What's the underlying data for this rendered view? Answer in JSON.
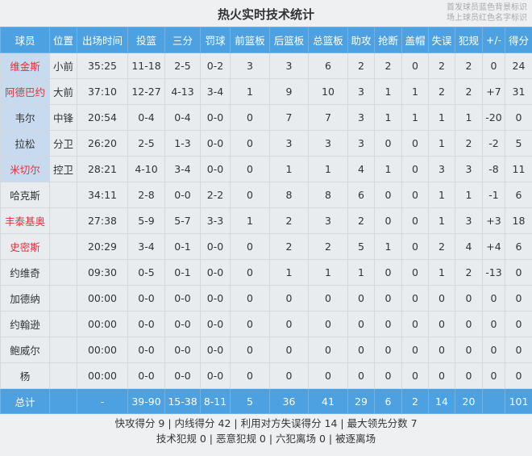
{
  "title": "热火实时技术统计",
  "legend": [
    "首发球员蓝色背景标识",
    "场上球员红色名字标识"
  ],
  "colors": {
    "header": "#4ea1e0",
    "starter_bg": "#c8dbee",
    "on_court_name": "#e0323c"
  },
  "columns": [
    "球员",
    "位置",
    "出场时间",
    "投篮",
    "三分",
    "罚球",
    "前篮板",
    "后篮板",
    "总篮板",
    "助攻",
    "抢断",
    "盖帽",
    "失误",
    "犯规",
    "+/-",
    "得分"
  ],
  "players": [
    {
      "name": "维金斯",
      "starter": true,
      "on_court": true,
      "stats": [
        "小前",
        "35:25",
        "11-18",
        "2-5",
        "0-2",
        "3",
        "3",
        "6",
        "2",
        "2",
        "0",
        "2",
        "2",
        "0",
        "24"
      ]
    },
    {
      "name": "阿德巴约",
      "starter": true,
      "on_court": true,
      "stats": [
        "大前",
        "37:10",
        "12-27",
        "4-13",
        "3-4",
        "1",
        "9",
        "10",
        "3",
        "1",
        "1",
        "2",
        "2",
        "+7",
        "31"
      ]
    },
    {
      "name": "韦尔",
      "starter": true,
      "on_court": false,
      "stats": [
        "中锋",
        "20:54",
        "0-4",
        "0-4",
        "0-0",
        "0",
        "7",
        "7",
        "3",
        "1",
        "1",
        "1",
        "1",
        "-20",
        "0"
      ]
    },
    {
      "name": "拉松",
      "starter": true,
      "on_court": false,
      "stats": [
        "分卫",
        "26:20",
        "2-5",
        "1-3",
        "0-0",
        "0",
        "3",
        "3",
        "3",
        "0",
        "0",
        "1",
        "2",
        "-2",
        "5"
      ]
    },
    {
      "name": "米切尔",
      "starter": true,
      "on_court": true,
      "stats": [
        "控卫",
        "28:21",
        "4-10",
        "3-4",
        "0-0",
        "0",
        "1",
        "1",
        "4",
        "1",
        "0",
        "3",
        "3",
        "-8",
        "11"
      ]
    },
    {
      "name": "哈克斯",
      "starter": false,
      "on_court": false,
      "stats": [
        "",
        "34:11",
        "2-8",
        "0-0",
        "2-2",
        "0",
        "8",
        "8",
        "6",
        "0",
        "0",
        "1",
        "1",
        "-1",
        "6"
      ]
    },
    {
      "name": "丰泰基奥",
      "starter": false,
      "on_court": true,
      "stats": [
        "",
        "27:38",
        "5-9",
        "5-7",
        "3-3",
        "1",
        "2",
        "3",
        "2",
        "0",
        "0",
        "1",
        "3",
        "+3",
        "18"
      ]
    },
    {
      "name": "史密斯",
      "starter": false,
      "on_court": true,
      "stats": [
        "",
        "20:29",
        "3-4",
        "0-1",
        "0-0",
        "0",
        "2",
        "2",
        "5",
        "1",
        "0",
        "2",
        "4",
        "+4",
        "6"
      ]
    },
    {
      "name": "约维奇",
      "starter": false,
      "on_court": false,
      "stats": [
        "",
        "09:30",
        "0-5",
        "0-1",
        "0-0",
        "0",
        "1",
        "1",
        "1",
        "0",
        "0",
        "1",
        "2",
        "-13",
        "0"
      ]
    },
    {
      "name": "加德纳",
      "starter": false,
      "on_court": false,
      "stats": [
        "",
        "00:00",
        "0-0",
        "0-0",
        "0-0",
        "0",
        "0",
        "0",
        "0",
        "0",
        "0",
        "0",
        "0",
        "0",
        "0"
      ]
    },
    {
      "name": "约翰逊",
      "starter": false,
      "on_court": false,
      "stats": [
        "",
        "00:00",
        "0-0",
        "0-0",
        "0-0",
        "0",
        "0",
        "0",
        "0",
        "0",
        "0",
        "0",
        "0",
        "0",
        "0"
      ]
    },
    {
      "name": "鲍威尔",
      "starter": false,
      "on_court": false,
      "stats": [
        "",
        "00:00",
        "0-0",
        "0-0",
        "0-0",
        "0",
        "0",
        "0",
        "0",
        "0",
        "0",
        "0",
        "0",
        "0",
        "0"
      ]
    },
    {
      "name": "杨",
      "starter": false,
      "on_court": false,
      "stats": [
        "",
        "00:00",
        "0-0",
        "0-0",
        "0-0",
        "0",
        "0",
        "0",
        "0",
        "0",
        "0",
        "0",
        "0",
        "0",
        "0"
      ]
    }
  ],
  "totals": [
    "总计",
    "",
    "-",
    "39-90",
    "15-38",
    "8-11",
    "5",
    "36",
    "41",
    "29",
    "6",
    "2",
    "14",
    "20",
    "",
    "101"
  ],
  "footer": {
    "line1": "快攻得分 9 | 内线得分 42 | 利用对方失误得分 14 | 最大领先分数 7",
    "line2": "技术犯规 0 | 恶意犯规 0 | 六犯离场 0 | 被逐离场"
  }
}
